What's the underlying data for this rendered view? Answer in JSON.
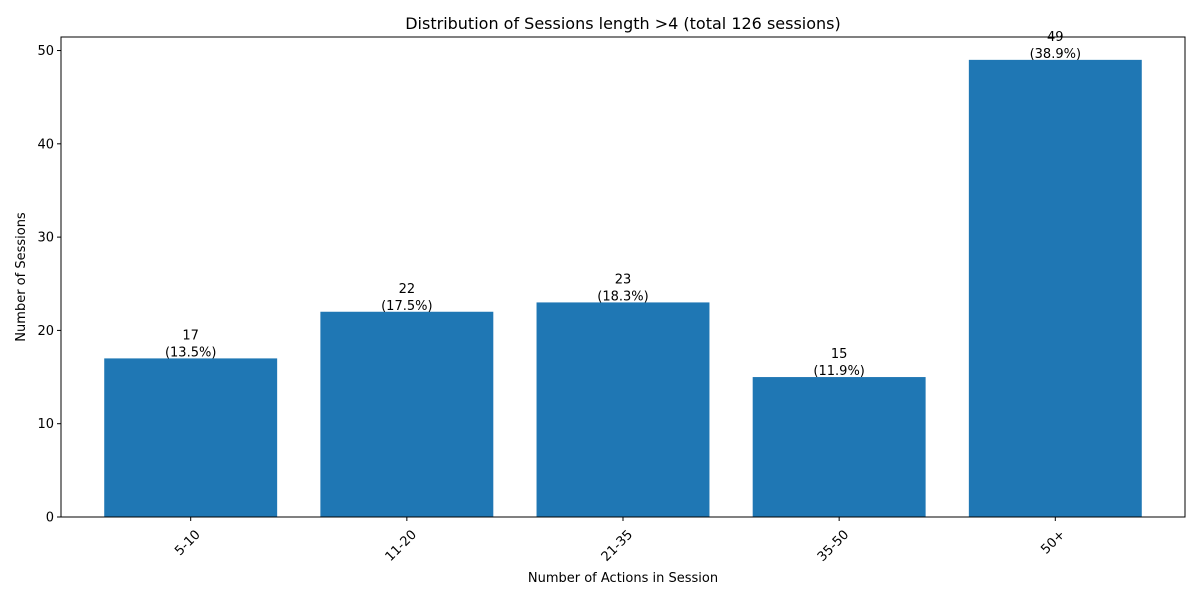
{
  "chart_data": {
    "type": "bar",
    "title": "Distribution of Sessions length >4 (total 126 sessions)",
    "xlabel": "Number of Actions in Session",
    "ylabel": "Number of Sessions",
    "categories": [
      "5-10",
      "11-20",
      "21-35",
      "35-50",
      "50+"
    ],
    "values": [
      17,
      22,
      23,
      15,
      49
    ],
    "percent_labels": [
      "(13.5%)",
      "(17.5%)",
      "(18.3%)",
      "(11.9%)",
      "(38.9%)"
    ],
    "ylim": [
      0,
      51.45
    ],
    "yticks": [
      0,
      10,
      20,
      30,
      40,
      50
    ],
    "grid": false,
    "bar_color": "#1f77b4"
  }
}
